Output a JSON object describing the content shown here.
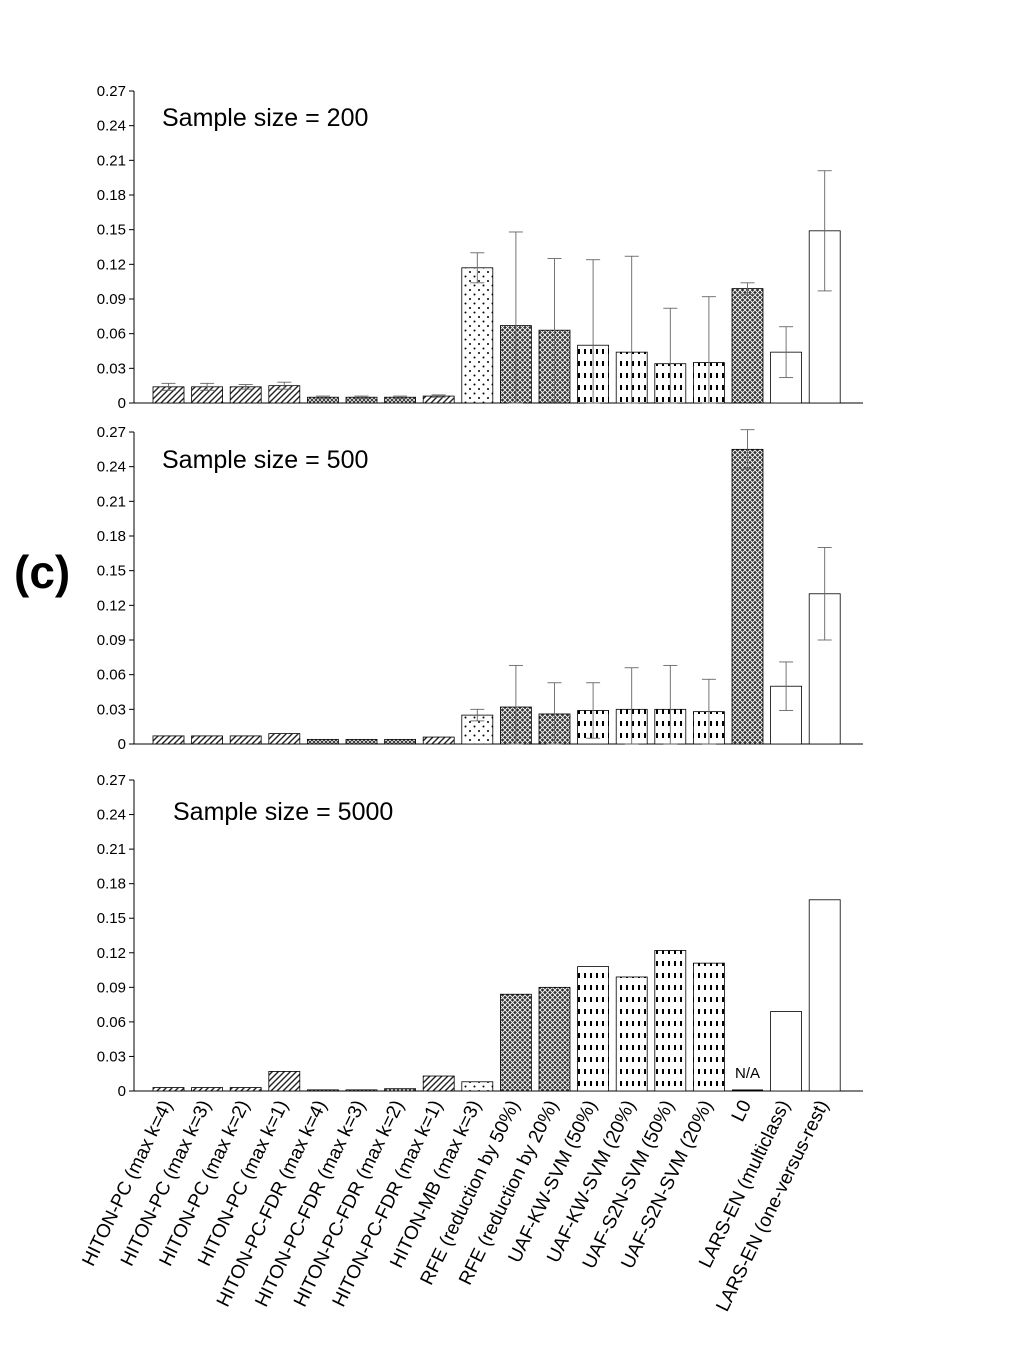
{
  "figure_label": "(c)",
  "chart_data": [
    {
      "type": "bar",
      "title": "Sample size = 200",
      "categories": [
        "HITON-PC (max k=4)",
        "HITON-PC (max k=3)",
        "HITON-PC (max k=2)",
        "HITON-PC (max k=1)",
        "HITON-PC-FDR (max k=4)",
        "HITON-PC-FDR (max k=3)",
        "HITON-PC-FDR (max k=2)",
        "HITON-PC-FDR (max k=1)",
        "HITON-MB (max k=3)",
        "RFE (reduction by 50%)",
        "RFE (reduction by 20%)",
        "UAF-KW-SVM (50%)",
        "UAF-KW-SVM (20%)",
        "UAF-S2N-SVM (50%)",
        "UAF-S2N-SVM (20%)",
        "L0",
        "LARS-EN (multiclass)",
        "LARS-EN (one-versus-rest)"
      ],
      "values": [
        0.014,
        0.014,
        0.014,
        0.015,
        0.005,
        0.005,
        0.005,
        0.006,
        0.117,
        0.067,
        0.063,
        0.05,
        0.044,
        0.034,
        0.035,
        0.099,
        0.044,
        0.149
      ],
      "errors": [
        0.003,
        0.003,
        0.002,
        0.003,
        0.001,
        0.001,
        0.001,
        0.001,
        0.013,
        0.081,
        0.062,
        0.074,
        0.083,
        0.048,
        0.057,
        0.005,
        0.022,
        0.052
      ],
      "ylim": [
        0,
        0.27
      ],
      "yticks": [
        "0",
        "0.03",
        "0.06",
        "0.09",
        "0.12",
        "0.15",
        "0.18",
        "0.21",
        "0.24",
        "0.27"
      ],
      "xlabel": "",
      "ylabel": ""
    },
    {
      "type": "bar",
      "title": "Sample size = 500",
      "categories": [
        "HITON-PC (max k=4)",
        "HITON-PC (max k=3)",
        "HITON-PC (max k=2)",
        "HITON-PC (max k=1)",
        "HITON-PC-FDR (max k=4)",
        "HITON-PC-FDR (max k=3)",
        "HITON-PC-FDR (max k=2)",
        "HITON-PC-FDR (max k=1)",
        "HITON-MB (max k=3)",
        "RFE (reduction by 50%)",
        "RFE (reduction by 20%)",
        "UAF-KW-SVM (50%)",
        "UAF-KW-SVM (20%)",
        "UAF-S2N-SVM (50%)",
        "UAF-S2N-SVM (20%)",
        "L0",
        "LARS-EN (multiclass)",
        "LARS-EN (one-versus-rest)"
      ],
      "values": [
        0.007,
        0.007,
        0.007,
        0.009,
        0.004,
        0.004,
        0.004,
        0.006,
        0.025,
        0.032,
        0.026,
        0.029,
        0.03,
        0.03,
        0.028,
        0.255,
        0.05,
        0.13
      ],
      "errors": [
        0,
        0,
        0,
        0,
        0,
        0,
        0,
        0,
        0.005,
        0.036,
        0.027,
        0.024,
        0.036,
        0.038,
        0.028,
        0.017,
        0.021,
        0.04
      ],
      "ylim": [
        0,
        0.27
      ],
      "yticks": [
        "0",
        "0.03",
        "0.06",
        "0.09",
        "0.12",
        "0.15",
        "0.18",
        "0.21",
        "0.24",
        "0.27"
      ],
      "xlabel": "",
      "ylabel": ""
    },
    {
      "type": "bar",
      "title": "Sample size = 5000",
      "categories": [
        "HITON-PC (max k=4)",
        "HITON-PC (max k=3)",
        "HITON-PC (max k=2)",
        "HITON-PC (max k=1)",
        "HITON-PC-FDR (max k=4)",
        "HITON-PC-FDR (max k=3)",
        "HITON-PC-FDR (max k=2)",
        "HITON-PC-FDR (max k=1)",
        "HITON-MB (max k=3)",
        "RFE (reduction by 50%)",
        "RFE (reduction by 20%)",
        "UAF-KW-SVM (50%)",
        "UAF-KW-SVM (20%)",
        "UAF-S2N-SVM (50%)",
        "UAF-S2N-SVM (20%)",
        "L0",
        "LARS-EN (multiclass)",
        "LARS-EN (one-versus-rest)"
      ],
      "values": [
        0.003,
        0.003,
        0.003,
        0.017,
        0.001,
        0.001,
        0.002,
        0.013,
        0.008,
        0.084,
        0.09,
        0.108,
        0.099,
        0.122,
        0.111,
        0,
        0.069,
        0.166
      ],
      "errors": [
        0,
        0,
        0,
        0,
        0,
        0,
        0,
        0,
        0,
        0,
        0,
        0,
        0,
        0,
        0,
        0,
        0,
        0
      ],
      "na_label": "N/A",
      "na_category": "L0",
      "ylim": [
        0,
        0.27
      ],
      "yticks": [
        "0",
        "0.03",
        "0.06",
        "0.09",
        "0.12",
        "0.15",
        "0.18",
        "0.21",
        "0.24",
        "0.27"
      ],
      "xlabel": "",
      "ylabel": ""
    }
  ],
  "bar_styles": [
    "diag",
    "diag",
    "diag",
    "diag",
    "dense",
    "dense",
    "dense",
    "diag",
    "dots",
    "cross",
    "cross",
    "dash",
    "dash",
    "dash",
    "dash",
    "cross",
    "plain",
    "plain"
  ]
}
